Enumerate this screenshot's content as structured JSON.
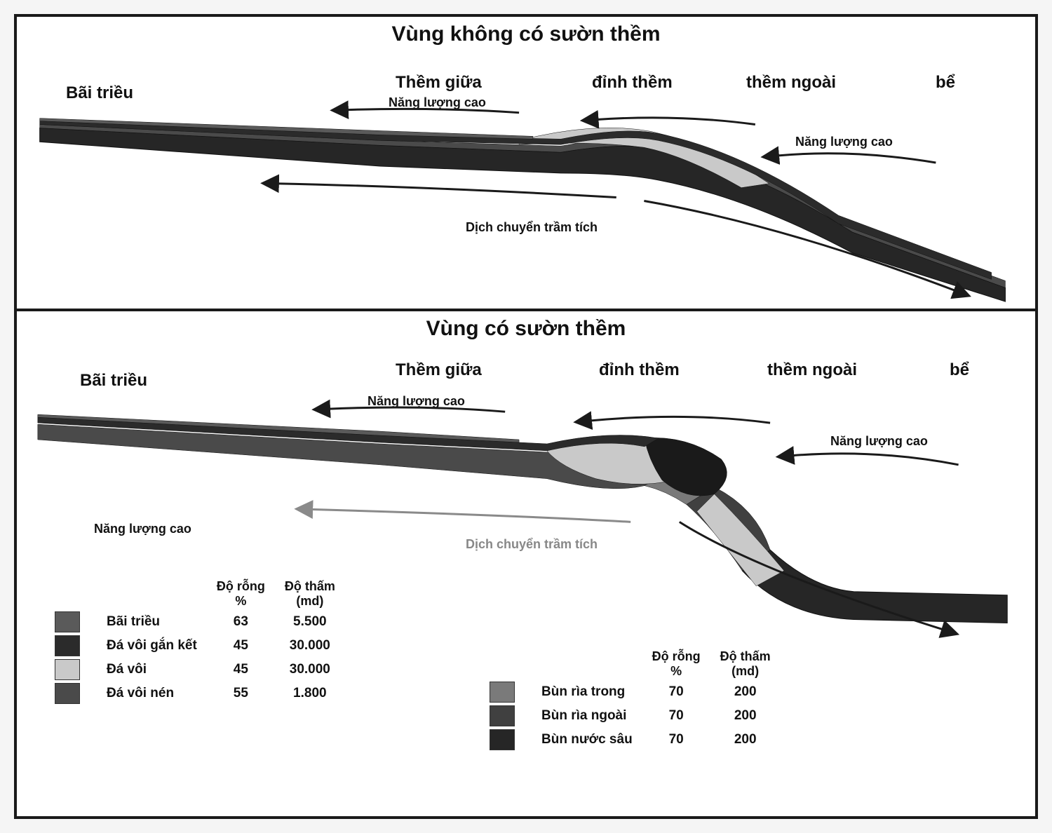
{
  "colors": {
    "border": "#1a1a1a",
    "bg": "#ffffff",
    "arrow": "#1a1a1a",
    "grey_arrow": "#8a8a8a",
    "tidal_flat": "#5a5a5a",
    "bound_lime": "#2b2b2b",
    "lime": "#c9c9c9",
    "packed_lime": "#4a4a4a",
    "inner_mud": "#7a7a7a",
    "outer_mud": "#404040",
    "deep_mud": "#262626"
  },
  "panel1": {
    "title": "Vùng không có sườn thềm",
    "zones": {
      "bai_trieu": "Bãi triều",
      "them_giua": "Thềm giữa",
      "dinh_them": "đỉnh thềm",
      "them_ngoai": "thềm ngoài",
      "be": "bể"
    },
    "labels": {
      "nl_cao_1": "Năng lượng cao",
      "nl_cao_2": "Năng lượng cao",
      "dich_chuyen": "Dịch chuyển trầm tích"
    }
  },
  "panel2": {
    "title": "Vùng có sườn thềm",
    "zones": {
      "bai_trieu": "Bãi triều",
      "them_giua": "Thềm giữa",
      "dinh_them": "đỉnh thềm",
      "them_ngoai": "thềm ngoài",
      "be": "bể"
    },
    "labels": {
      "nl_cao_1": "Năng lượng cao",
      "nl_cao_2": "Năng lượng cao",
      "nl_cao_3": "Năng lượng cao",
      "dich_chuyen": "Dịch chuyển trầm tích"
    }
  },
  "legend_left": {
    "headers": {
      "porosity": "Độ rỗng\n%",
      "perm": "Độ thấm\n(md)"
    },
    "rows": [
      {
        "label": "Bãi triều",
        "porosity": "63",
        "perm": "5.500",
        "color_key": "tidal_flat"
      },
      {
        "label": "Đá vôi gắn kết",
        "porosity": "45",
        "perm": "30.000",
        "color_key": "bound_lime"
      },
      {
        "label": "Đá vôi",
        "porosity": "45",
        "perm": "30.000",
        "color_key": "lime"
      },
      {
        "label": "Đá vôi nén",
        "porosity": "55",
        "perm": "1.800",
        "color_key": "packed_lime"
      }
    ]
  },
  "legend_right": {
    "headers": {
      "porosity": "Độ rỗng\n%",
      "perm": "Độ thấm\n(md)"
    },
    "rows": [
      {
        "label": "Bùn rìa trong",
        "porosity": "70",
        "perm": "200",
        "color_key": "inner_mud"
      },
      {
        "label": "Bùn rìa ngoài",
        "porosity": "70",
        "perm": "200",
        "color_key": "outer_mud"
      },
      {
        "label": "Bùn nước sâu",
        "porosity": "70",
        "perm": "200",
        "color_key": "deep_mud"
      }
    ]
  }
}
